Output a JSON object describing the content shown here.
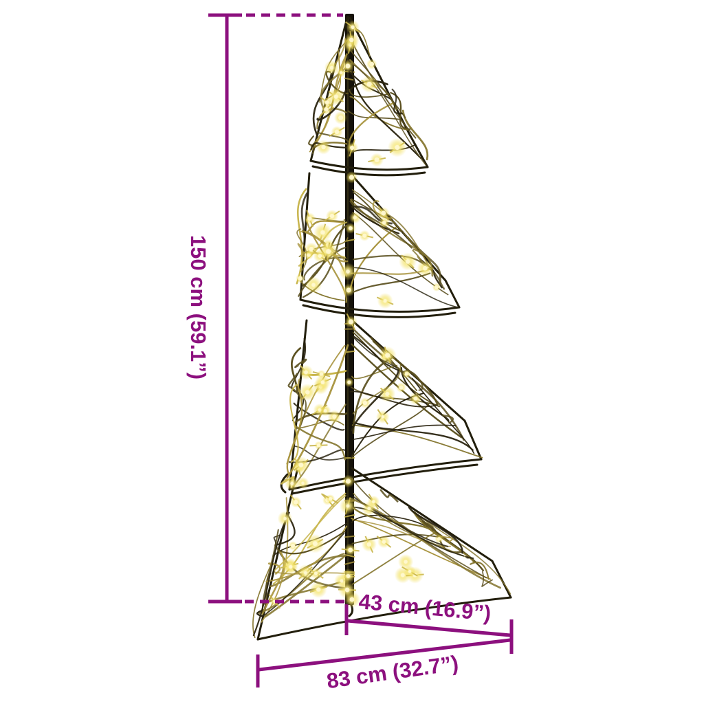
{
  "diagram": {
    "background_color": "#ffffff",
    "annotation_color": "#8C107E",
    "labels": {
      "height": "150 cm (59.1”)",
      "depth": "43 cm (16.9”)",
      "width": "83 cm (32.7”)"
    },
    "tree_palette": {
      "trunk": "#15120a",
      "outline": "#221e0c",
      "wire_dark": "#2a2410",
      "wire_mid": "#5a4f1e",
      "wire_light": "#84752e",
      "wire_gold": "#a8943e",
      "wire_bright": "#c7b44a",
      "led_core": "#fff8cf",
      "led_glow": "#f2df6a"
    }
  }
}
